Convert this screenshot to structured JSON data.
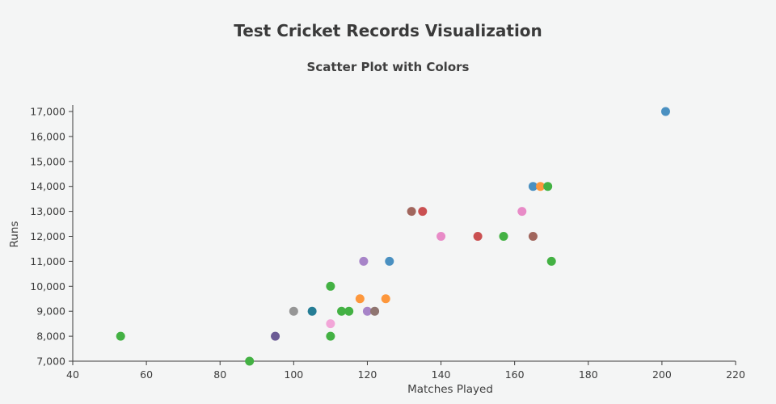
{
  "page": {
    "background": "#f4f5f5"
  },
  "chart_data": {
    "type": "scatter",
    "title": "Test Cricket Records Visualization",
    "subtitle": "Scatter Plot with Colors",
    "xlabel": "Matches Played",
    "ylabel": "Runs",
    "xlim": [
      40,
      220
    ],
    "ylim": [
      7000,
      17000
    ],
    "xticks": [
      40,
      60,
      80,
      100,
      120,
      140,
      160,
      180,
      200,
      220
    ],
    "yticks": [
      7000,
      8000,
      9000,
      10000,
      11000,
      12000,
      13000,
      14000,
      15000,
      16000,
      17000
    ],
    "grid": false,
    "legend_position": "none",
    "marker_radius": 5.5,
    "points": [
      {
        "x": 201,
        "y": 17000,
        "color": "#4a90c1"
      },
      {
        "x": 165,
        "y": 14000,
        "color": "#4a90c1"
      },
      {
        "x": 167,
        "y": 14000,
        "color": "#fd973c"
      },
      {
        "x": 169,
        "y": 14000,
        "color": "#43b143"
      },
      {
        "x": 162,
        "y": 13000,
        "color": "#e88bc7"
      },
      {
        "x": 132,
        "y": 13000,
        "color": "#a1665d"
      },
      {
        "x": 135,
        "y": 13000,
        "color": "#ca5051"
      },
      {
        "x": 140,
        "y": 12000,
        "color": "#e88bc7"
      },
      {
        "x": 150,
        "y": 12000,
        "color": "#ca5051"
      },
      {
        "x": 157,
        "y": 12000,
        "color": "#43b143"
      },
      {
        "x": 165,
        "y": 12000,
        "color": "#a1665d"
      },
      {
        "x": 170,
        "y": 11000,
        "color": "#43b143"
      },
      {
        "x": 119,
        "y": 11000,
        "color": "#a784c8"
      },
      {
        "x": 126,
        "y": 11000,
        "color": "#4a90c1"
      },
      {
        "x": 110,
        "y": 10000,
        "color": "#43b143"
      },
      {
        "x": 118,
        "y": 9500,
        "color": "#fd973c"
      },
      {
        "x": 125,
        "y": 9500,
        "color": "#fd973c"
      },
      {
        "x": 100,
        "y": 9000,
        "color": "#969696"
      },
      {
        "x": 105,
        "y": 9000,
        "color": "#257d95"
      },
      {
        "x": 113,
        "y": 9000,
        "color": "#43b143"
      },
      {
        "x": 115,
        "y": 9000,
        "color": "#43b143"
      },
      {
        "x": 120,
        "y": 9000,
        "color": "#a784c8"
      },
      {
        "x": 122,
        "y": 9000,
        "color": "#8f7570"
      },
      {
        "x": 110,
        "y": 8500,
        "color": "#f2a6d8"
      },
      {
        "x": 95,
        "y": 8000,
        "color": "#6b5b95"
      },
      {
        "x": 53,
        "y": 8000,
        "color": "#43b143"
      },
      {
        "x": 110,
        "y": 8000,
        "color": "#43b143"
      },
      {
        "x": 88,
        "y": 7000,
        "color": "#43b143"
      }
    ]
  }
}
